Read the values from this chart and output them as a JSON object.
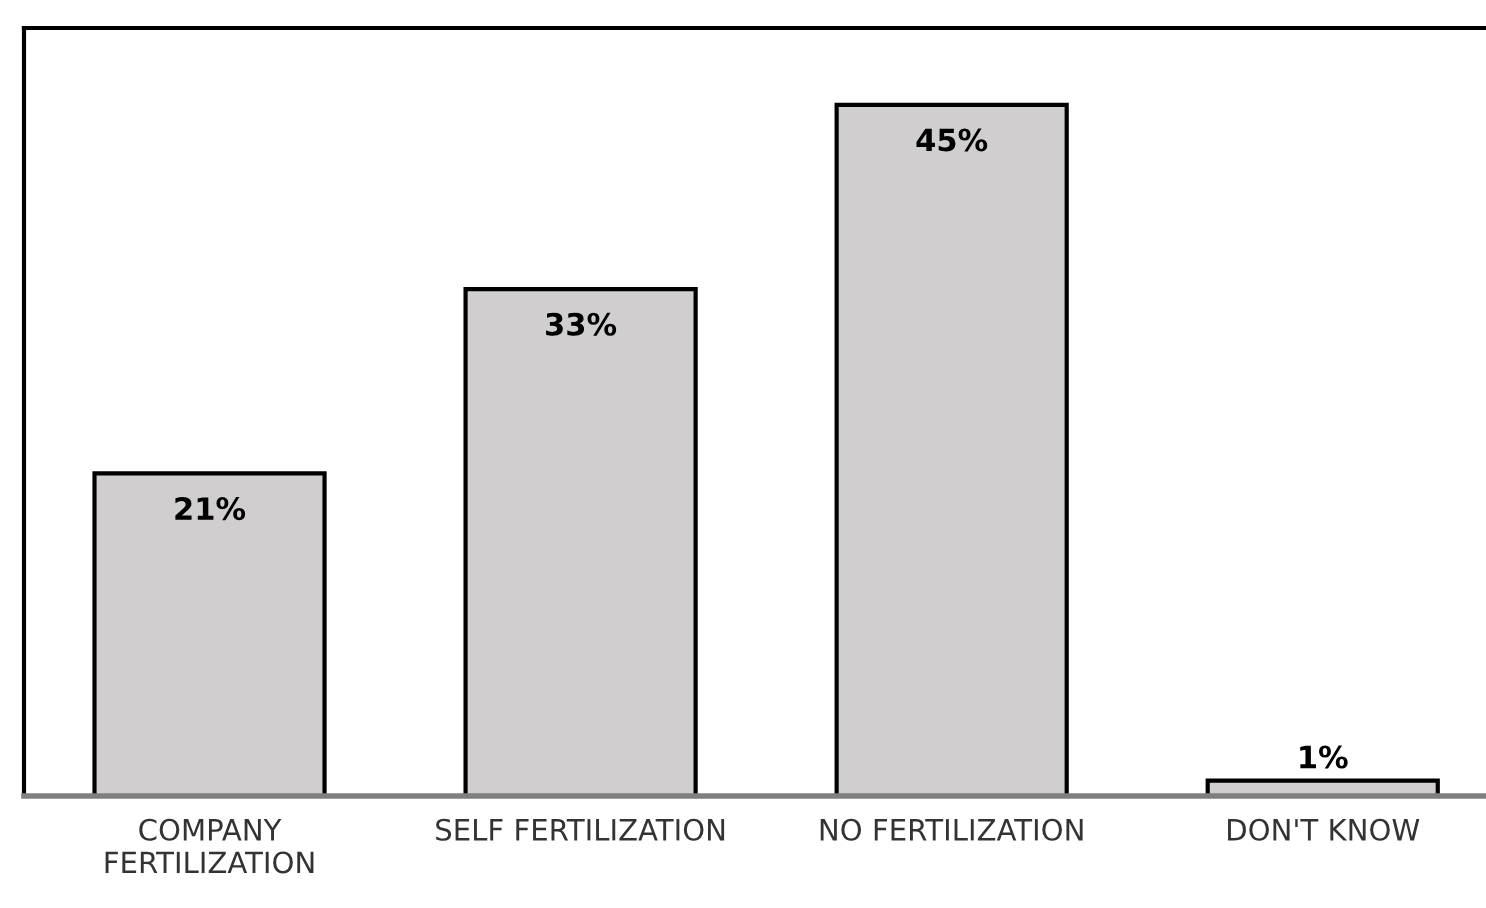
{
  "chart_data": {
    "type": "bar",
    "categories": [
      "COMPANY FERTILIZATION",
      "SELF FERTILIZATION",
      "NO FERTILIZATION",
      "DON'T KNOW"
    ],
    "values": [
      21,
      33,
      45,
      1
    ],
    "value_labels": [
      "21%",
      "33%",
      "45%",
      "1%"
    ],
    "color": "#d0cece",
    "ylim": [
      0,
      50
    ],
    "tick_labels": "x",
    "grid": false,
    "legend": false
  }
}
